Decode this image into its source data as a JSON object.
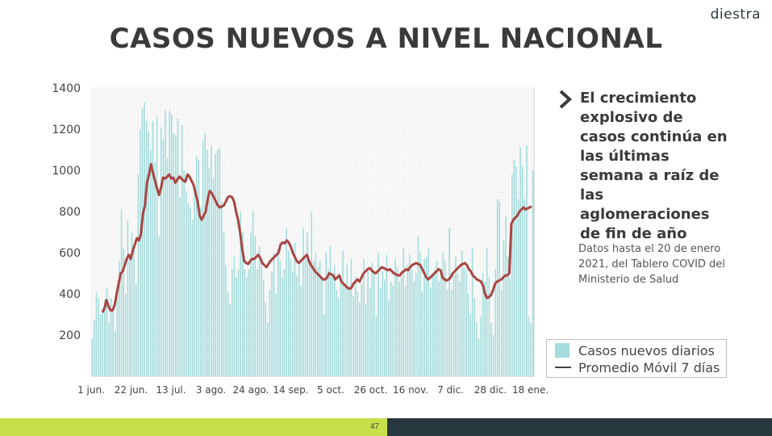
{
  "logo": {
    "text": "diestra"
  },
  "title": "CASOS NUEVOS A NIVEL NACIONAL",
  "callout": "El crecimiento explosivo de casos continúa en las últimas semana a raíz de las aglomeraciones de fin de año",
  "note": "Datos hasta el 20 de enero 2021, del Tablero COVID del Ministerio de Salud",
  "page_number": "47",
  "colors": {
    "bars": "#a6dcdc",
    "moving_average": "#a84643",
    "footer_accent": "#c9e04a",
    "footer_dark": "#26373d"
  },
  "chart_data": {
    "type": "bar",
    "title": "CASOS NUEVOS A NIVEL NACIONAL",
    "ylim": [
      0,
      1400
    ],
    "y_ticks": [
      200,
      400,
      600,
      800,
      1000,
      1200,
      1400
    ],
    "x_tick_labels": [
      "1 jun.",
      "22 jun.",
      "13 jul.",
      "3 ago.",
      "24 ago.",
      "14 sep.",
      "5 oct.",
      "26 oct.",
      "16 nov.",
      "7 dic.",
      "28 dic.",
      "18 ene."
    ],
    "grid": true,
    "legend_position": "bottom-right",
    "series": [
      {
        "name": "Casos nuevos diarios",
        "type": "bar",
        "values": [
          180,
          270,
          410,
          380,
          300,
          330,
          370,
          430,
          260,
          380,
          330,
          220,
          380,
          560,
          810,
          620,
          400,
          760,
          590,
          700,
          640,
          450,
          980,
          1200,
          1300,
          1330,
          1240,
          1190,
          1100,
          1240,
          1040,
          1260,
          680,
          1210,
          1150,
          1290,
          1060,
          1290,
          1270,
          1180,
          1170,
          1250,
          870,
          1220,
          1000,
          900,
          840,
          820,
          760,
          900,
          1070,
          1050,
          820,
          1140,
          1180,
          1100,
          1010,
          1120,
          960,
          1080,
          1100,
          1110,
          850,
          700,
          540,
          410,
          350,
          520,
          580,
          480,
          520,
          800,
          700,
          520,
          480,
          520,
          700,
          800,
          680,
          520,
          630,
          560,
          470,
          360,
          260,
          420,
          510,
          600,
          400,
          620,
          560,
          480,
          520,
          720,
          610,
          570,
          510,
          650,
          490,
          560,
          440,
          720,
          570,
          700,
          560,
          800,
          560,
          600,
          530,
          560,
          480,
          300,
          600,
          520,
          630,
          500,
          540,
          420,
          380,
          480,
          610,
          430,
          540,
          440,
          570,
          390,
          480,
          410,
          360,
          450,
          570,
          350,
          510,
          430,
          550,
          500,
          290,
          600,
          430,
          510,
          470,
          590,
          370,
          460,
          440,
          570,
          530,
          460,
          480,
          620,
          440,
          540,
          590,
          520,
          460,
          500,
          680,
          600,
          410,
          570,
          580,
          620,
          430,
          500,
          520,
          560,
          460,
          520,
          600,
          560,
          420,
          720,
          420,
          510,
          580,
          500,
          460,
          610,
          530,
          520,
          400,
          300,
          620,
          380,
          260,
          180,
          290,
          500,
          460,
          620,
          480,
          260,
          200,
          520,
          860,
          850,
          420,
          660,
          780,
          580,
          480,
          980,
          1050,
          1020,
          860,
          1110,
          1020,
          860,
          1120,
          290,
          260,
          1000
        ]
      },
      {
        "name": "Promedio Móvil 7 días",
        "type": "line",
        "values": [
          310,
          330,
          370,
          340,
          320,
          320,
          345,
          400,
          450,
          500,
          510,
          540,
          570,
          590,
          570,
          610,
          640,
          670,
          660,
          690,
          790,
          830,
          940,
          980,
          1030,
          985,
          950,
          910,
          880,
          920,
          965,
          960,
          970,
          980,
          960,
          965,
          940,
          955,
          970,
          960,
          950,
          945,
          980,
          970,
          950,
          930,
          890,
          850,
          780,
          760,
          780,
          800,
          860,
          900,
          890,
          870,
          850,
          830,
          820,
          825,
          830,
          850,
          870,
          875,
          870,
          850,
          800,
          760,
          700,
          620,
          560,
          550,
          545,
          560,
          570,
          570,
          580,
          590,
          575,
          550,
          540,
          530,
          545,
          560,
          570,
          580,
          590,
          600,
          640,
          650,
          645,
          660,
          650,
          630,
          600,
          580,
          560,
          550,
          560,
          570,
          580,
          590,
          560,
          540,
          525,
          510,
          500,
          490,
          480,
          470,
          470,
          480,
          500,
          495,
          490,
          470,
          480,
          490,
          460,
          450,
          440,
          430,
          425,
          430,
          450,
          460,
          470,
          460,
          480,
          500,
          510,
          520,
          525,
          515,
          505,
          500,
          510,
          520,
          530,
          525,
          520,
          515,
          520,
          510,
          500,
          495,
          490,
          490,
          505,
          510,
          520,
          515,
          530,
          540,
          545,
          550,
          545,
          540,
          520,
          500,
          480,
          470,
          480,
          490,
          500,
          510,
          520,
          515,
          480,
          470,
          465,
          470,
          480,
          500,
          510,
          520,
          530,
          540,
          545,
          550,
          540,
          520,
          510,
          490,
          480,
          470,
          465,
          460,
          440,
          400,
          380,
          385,
          395,
          420,
          450,
          460,
          465,
          470,
          480,
          490,
          490,
          500,
          740,
          760,
          770,
          780,
          800,
          810,
          820,
          810,
          815,
          820,
          825
        ]
      }
    ]
  }
}
